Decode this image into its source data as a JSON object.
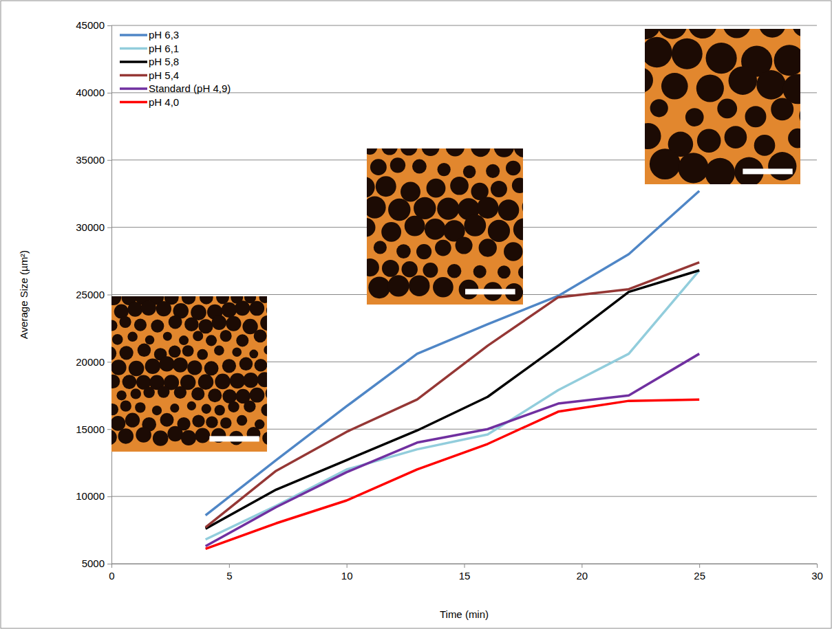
{
  "chart_data": {
    "type": "line",
    "x_label": "Time (min)",
    "y_label": "Average Size (µm²)",
    "x": [
      4,
      7,
      10,
      13,
      16,
      19,
      22,
      25
    ],
    "series": [
      {
        "name": "pH 6,3",
        "color": "#4f86c6",
        "values": [
          8600,
          12700,
          16700,
          20600,
          22800,
          24900,
          28000,
          32700
        ]
      },
      {
        "name": "pH 6,1",
        "color": "#92cddc",
        "values": [
          6800,
          9300,
          12000,
          13500,
          14600,
          17900,
          20600,
          26800
        ]
      },
      {
        "name": "pH 5,8",
        "color": "#000000",
        "values": [
          7600,
          10500,
          12700,
          14900,
          17400,
          21200,
          25200,
          26800
        ]
      },
      {
        "name": "pH 5,4",
        "color": "#953735",
        "values": [
          7700,
          11900,
          14800,
          17200,
          21200,
          24800,
          25400,
          27400
        ]
      },
      {
        "name": "Standard (pH 4,9)",
        "color": "#7030a0",
        "values": [
          6300,
          9200,
          11800,
          14000,
          15000,
          16900,
          17500,
          20600
        ]
      },
      {
        "name": "pH 4,0",
        "color": "#ff0000",
        "values": [
          6100,
          8000,
          9700,
          12000,
          13900,
          16300,
          17100,
          17200
        ]
      }
    ],
    "xlim": [
      0,
      30
    ],
    "xticks": [
      0,
      5,
      10,
      15,
      20,
      25,
      30
    ],
    "ylim": [
      5000,
      45000
    ],
    "yticks": [
      5000,
      10000,
      15000,
      20000,
      25000,
      30000,
      35000,
      40000,
      45000
    ],
    "grid": true,
    "legend": "top-left"
  }
}
